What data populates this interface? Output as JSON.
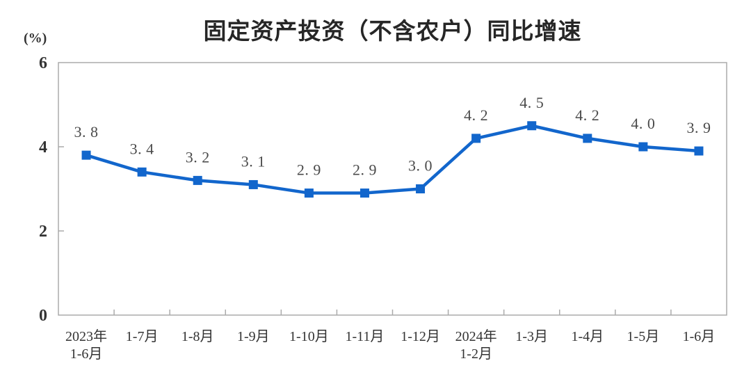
{
  "chart": {
    "title": "固定资产投资（不含农户）同比增速",
    "unit": "(%)"
  },
  "chart_data": {
    "type": "line",
    "title": "固定资产投资（不含农户）同比增速",
    "ylabel": "(%)",
    "xlabel": "",
    "categories": [
      "2023年\n1-6月",
      "1-7月",
      "1-8月",
      "1-9月",
      "1-10月",
      "1-11月",
      "1-12月",
      "2024年\n1-2月",
      "1-3月",
      "1-4月",
      "1-5月",
      "1-6月"
    ],
    "series": [
      {
        "name": "固定资产投资（不含农户）同比增速",
        "values": [
          3.8,
          3.4,
          3.2,
          3.1,
          2.9,
          2.9,
          3.0,
          4.2,
          4.5,
          4.2,
          4.0,
          3.9
        ]
      }
    ],
    "point_labels": [
      "3. 8",
      "3. 4",
      "3. 2",
      "3. 1",
      "2. 9",
      "2. 9",
      "3. 0",
      "4. 2",
      "4. 5",
      "4. 2",
      "4. 0",
      "3. 9"
    ],
    "ylim": [
      0,
      6
    ],
    "yticks": [
      0,
      2,
      4,
      6
    ],
    "grid": false,
    "legend": null,
    "marker": "square",
    "line_color": "#1266CC"
  },
  "colors": {
    "line": "#1266CC",
    "axis_border": "#ababab",
    "title_text": "#262626",
    "point_label_text": "#4a4a4a",
    "tick_text": "#333333",
    "background": "#ffffff"
  }
}
